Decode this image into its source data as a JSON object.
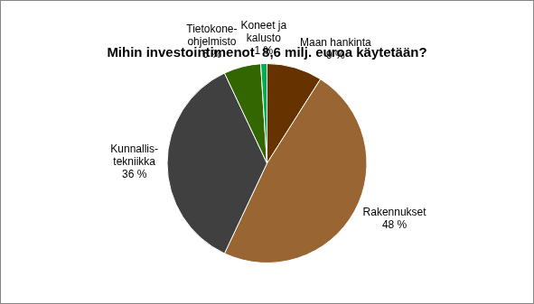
{
  "chart_data": {
    "type": "pie",
    "title": "Mihin investointimenot  8,6 milj. euroa käytetään?",
    "categories": [
      "Maan hankinta",
      "Rakennukset",
      "Kunnallis-\ntekniikka",
      "Tietokone-\nohjelmisto",
      "Koneet ja\nkalusto"
    ],
    "values": [
      9,
      48,
      36,
      6,
      1
    ],
    "value_labels": [
      "9 %",
      "48 %",
      "36 %",
      "6 %",
      "1 %"
    ],
    "colors": [
      "#663300",
      "#996633",
      "#404040",
      "#336600",
      "#00b050"
    ],
    "data_labels": true
  }
}
